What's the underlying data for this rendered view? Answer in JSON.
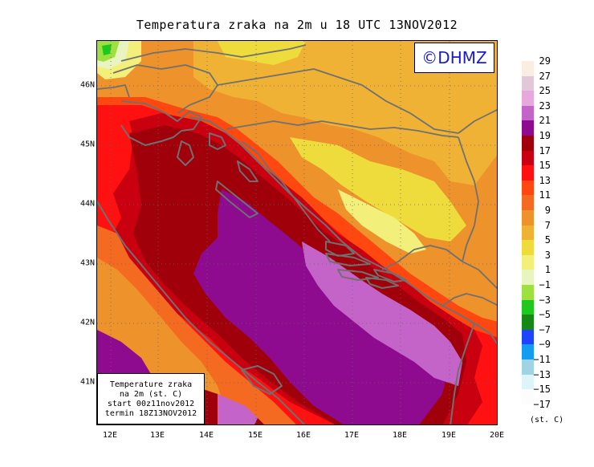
{
  "title": "Temperatura zraka na 2m u 18 UTC 13NOV2012",
  "copyright": "©DHMZ",
  "info_box": {
    "line1": "Temperature zraka",
    "line2": "na 2m (st. C)",
    "line3": "start 00z11nov2012",
    "line4": "termin 18Z13NOV2012"
  },
  "axes": {
    "lat_ticks": [
      "46N",
      "45N",
      "44N",
      "43N",
      "42N",
      "41N"
    ],
    "lon_ticks": [
      "12E",
      "13E",
      "14E",
      "15E",
      "16E",
      "17E",
      "18E",
      "19E",
      "20E"
    ]
  },
  "legend": {
    "unit": "(st. C)",
    "labels": [
      "29",
      "27",
      "25",
      "23",
      "21",
      "19",
      "17",
      "15",
      "13",
      "11",
      "9",
      "7",
      "5",
      "3",
      "1",
      "−1",
      "−3",
      "−5",
      "−7",
      "−9",
      "−11",
      "−13",
      "−15",
      "−17"
    ],
    "colors": [
      "#faeee2",
      "#e0c8d8",
      "#e8a8de",
      "#c564c8",
      "#8e0a8e",
      "#a0000a",
      "#c80010",
      "#ff1111",
      "#ff4810",
      "#f46a20",
      "#ee922c",
      "#f0b234",
      "#eedc3c",
      "#f2f07a",
      "#eaf4c0",
      "#9ee040",
      "#1ec81e",
      "#168816",
      "#1e44ff",
      "#149cf0",
      "#a0d4e4",
      "#dff4f8",
      "#fbfdfd"
    ]
  },
  "map_colors": {
    "t21": "#8e0a8e",
    "t23": "#c564c8",
    "t19": "#a0000a",
    "t17": "#c80010",
    "t15": "#ff1111",
    "t13": "#ff4810",
    "t11": "#f46a20",
    "t9": "#ee922c",
    "t7": "#f0b234",
    "t5": "#eedc3c",
    "t3": "#f2f07a",
    "t1": "#eaf4c0",
    "tm1": "#9ee040",
    "tm3": "#1ec81e"
  }
}
